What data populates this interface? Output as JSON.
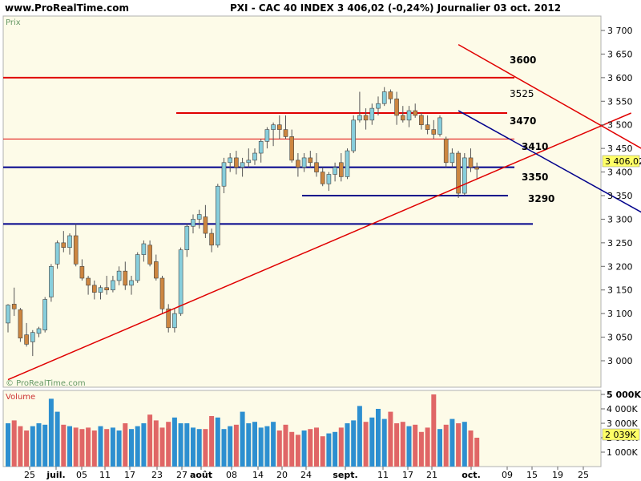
{
  "header": {
    "site": "www.ProRealTime.com",
    "info": "PXI - CAC 40 INDEX    3 406,02 (-0,24%)    Journalier  03 oct. 2012"
  },
  "price_panel": {
    "label": "Prix",
    "watermark": "© ProRealTime.com",
    "last_value_badge": "3 406,02",
    "levels": [
      "3600",
      "3525",
      "3470",
      "3410",
      "3350",
      "3290"
    ]
  },
  "volume_panel": {
    "label": "Volume",
    "last_value_badge": "2 039K"
  },
  "colors": {
    "up": "#87cedc",
    "down": "#cd8640",
    "support_red": "#e00000",
    "support_blue": "#00008b",
    "vol_up": "#2d8fd0",
    "vol_down": "#e06666",
    "background": "#fdfbe8"
  },
  "chart_data": [
    {
      "type": "candlestick",
      "title": "CAC 40 INDEX",
      "period": "Journalier",
      "ylim": [
        2960,
        3720
      ],
      "y_ticks": [
        "3 000",
        "3 050",
        "3 100",
        "3 150",
        "3 200",
        "3 250",
        "3 300",
        "3 350",
        "3 400",
        "3 450",
        "3 500",
        "3 550",
        "3 600",
        "3 650",
        "3 700"
      ],
      "x_tick_labels": [
        "25",
        "juil.",
        "05",
        "11",
        "17",
        "23",
        "27",
        "août",
        "08",
        "14",
        "20",
        "24",
        "sept.",
        "11",
        "17",
        "21",
        "oct.",
        "09",
        "15",
        "19",
        "25"
      ],
      "horizontal_levels": [
        {
          "value": 3600,
          "label": "3600",
          "color": "red"
        },
        {
          "value": 3525,
          "label": "3525",
          "color": "red"
        },
        {
          "value": 3470,
          "label": "3470",
          "color": "red"
        },
        {
          "value": 3410,
          "label": "3410",
          "color": "blue"
        },
        {
          "value": 3350,
          "label": "3350",
          "color": "blue"
        },
        {
          "value": 3290,
          "label": "3290",
          "color": "blue"
        }
      ],
      "trend_lines": [
        {
          "from": [
            0,
            2960
          ],
          "to": [
            101,
            3525
          ],
          "color": "red"
        },
        {
          "from": [
            73,
            3670
          ],
          "to": [
            104,
            3440
          ],
          "color": "red"
        },
        {
          "from": [
            73,
            3530
          ],
          "to": [
            104,
            3305
          ],
          "color": "blue"
        }
      ],
      "candles": [
        [
          3080,
          3120,
          3060,
          3118
        ],
        [
          3120,
          3155,
          3095,
          3110
        ],
        [
          3108,
          3112,
          3040,
          3048
        ],
        [
          3055,
          3080,
          3030,
          3035
        ],
        [
          3040,
          3065,
          3010,
          3060
        ],
        [
          3058,
          3072,
          3050,
          3068
        ],
        [
          3065,
          3135,
          3060,
          3130
        ],
        [
          3135,
          3205,
          3125,
          3200
        ],
        [
          3205,
          3255,
          3195,
          3250
        ],
        [
          3250,
          3275,
          3230,
          3240
        ],
        [
          3240,
          3270,
          3225,
          3265
        ],
        [
          3265,
          3290,
          3200,
          3205
        ],
        [
          3200,
          3215,
          3170,
          3175
        ],
        [
          3175,
          3180,
          3140,
          3160
        ],
        [
          3160,
          3170,
          3130,
          3145
        ],
        [
          3145,
          3160,
          3130,
          3155
        ],
        [
          3155,
          3180,
          3140,
          3150
        ],
        [
          3150,
          3180,
          3145,
          3170
        ],
        [
          3170,
          3200,
          3160,
          3190
        ],
        [
          3190,
          3210,
          3150,
          3160
        ],
        [
          3160,
          3180,
          3140,
          3170
        ],
        [
          3170,
          3230,
          3165,
          3225
        ],
        [
          3225,
          3255,
          3210,
          3248
        ],
        [
          3245,
          3255,
          3200,
          3205
        ],
        [
          3210,
          3225,
          3170,
          3175
        ],
        [
          3175,
          3180,
          3100,
          3110
        ],
        [
          3110,
          3120,
          3060,
          3070
        ],
        [
          3070,
          3110,
          3060,
          3100
        ],
        [
          3100,
          3240,
          3095,
          3235
        ],
        [
          3235,
          3290,
          3220,
          3285
        ],
        [
          3285,
          3310,
          3270,
          3300
        ],
        [
          3300,
          3320,
          3280,
          3310
        ],
        [
          3305,
          3330,
          3260,
          3270
        ],
        [
          3270,
          3280,
          3230,
          3245
        ],
        [
          3245,
          3375,
          3240,
          3370
        ],
        [
          3370,
          3430,
          3355,
          3420
        ],
        [
          3420,
          3440,
          3400,
          3430
        ],
        [
          3430,
          3445,
          3395,
          3410
        ],
        [
          3410,
          3430,
          3390,
          3420
        ],
        [
          3420,
          3450,
          3410,
          3425
        ],
        [
          3425,
          3450,
          3415,
          3440
        ],
        [
          3440,
          3470,
          3420,
          3465
        ],
        [
          3465,
          3495,
          3450,
          3490
        ],
        [
          3490,
          3505,
          3455,
          3500
        ],
        [
          3500,
          3520,
          3470,
          3490
        ],
        [
          3490,
          3520,
          3470,
          3475
        ],
        [
          3475,
          3490,
          3420,
          3425
        ],
        [
          3425,
          3440,
          3390,
          3410
        ],
        [
          3410,
          3440,
          3400,
          3430
        ],
        [
          3430,
          3445,
          3410,
          3420
        ],
        [
          3420,
          3440,
          3390,
          3400
        ],
        [
          3400,
          3410,
          3370,
          3375
        ],
        [
          3375,
          3400,
          3360,
          3395
        ],
        [
          3395,
          3420,
          3380,
          3410
        ],
        [
          3420,
          3440,
          3380,
          3390
        ],
        [
          3390,
          3450,
          3385,
          3445
        ],
        [
          3445,
          3520,
          3440,
          3510
        ],
        [
          3510,
          3570,
          3505,
          3520
        ],
        [
          3520,
          3535,
          3490,
          3510
        ],
        [
          3510,
          3545,
          3500,
          3535
        ],
        [
          3535,
          3560,
          3520,
          3545
        ],
        [
          3545,
          3580,
          3540,
          3570
        ],
        [
          3570,
          3575,
          3545,
          3555
        ],
        [
          3555,
          3570,
          3500,
          3520
        ],
        [
          3520,
          3540,
          3505,
          3510
        ],
        [
          3510,
          3540,
          3495,
          3530
        ],
        [
          3530,
          3545,
          3515,
          3520
        ],
        [
          3520,
          3525,
          3490,
          3500
        ],
        [
          3500,
          3520,
          3480,
          3490
        ],
        [
          3490,
          3510,
          3470,
          3480
        ],
        [
          3480,
          3520,
          3475,
          3515
        ],
        [
          3470,
          3475,
          3410,
          3420
        ],
        [
          3420,
          3450,
          3410,
          3440
        ],
        [
          3440,
          3445,
          3345,
          3355
        ],
        [
          3355,
          3440,
          3350,
          3430
        ],
        [
          3430,
          3450,
          3400,
          3410
        ],
        [
          3410,
          3420,
          3385,
          3406
        ]
      ]
    },
    {
      "type": "bar",
      "title": "Volume",
      "ylim": [
        0,
        5200
      ],
      "y_ticks": [
        "1 000K",
        "2 000K",
        "3 000K",
        "4 000K",
        "5 000K"
      ],
      "unit": "K",
      "values": [
        3000,
        3200,
        2800,
        2500,
        2800,
        3000,
        2900,
        4700,
        3800,
        2900,
        2800,
        2700,
        2600,
        2700,
        2500,
        2800,
        2600,
        2700,
        2500,
        3000,
        2600,
        2800,
        3000,
        3600,
        3200,
        2700,
        3100,
        3400,
        3000,
        3000,
        2700,
        2600,
        2600,
        3500,
        3400,
        2600,
        2800,
        2900,
        3800,
        3000,
        3100,
        2700,
        2800,
        3100,
        2500,
        2900,
        2400,
        2200,
        2500,
        2600,
        2700,
        2100,
        2300,
        2400,
        2700,
        3000,
        3200,
        4200,
        3100,
        3400,
        4000,
        3300,
        3800,
        3000,
        3100,
        2800,
        2900,
        2400,
        2700,
        5000,
        2600,
        2900,
        3300,
        3000,
        3100,
        2500,
        2000
      ]
    }
  ]
}
